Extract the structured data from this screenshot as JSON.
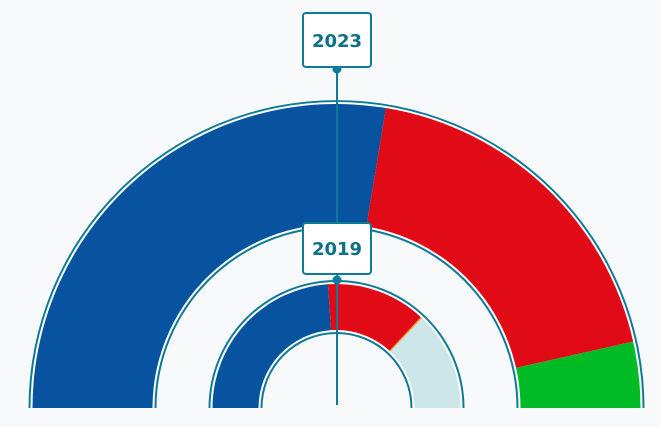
{
  "chart_data": {
    "type": "semicircle-donut",
    "colors": {
      "accent": "#0e7a99",
      "outline": "#0e7a99",
      "label_box_fill": "#ffffff",
      "label_text": "#0e6f89"
    },
    "charts": [
      {
        "year": "2023",
        "segments": [
          {
            "key": "blue",
            "share": 0.552,
            "color": "#0753a0"
          },
          {
            "key": "red",
            "share": 0.378,
            "color": "#e10a17"
          },
          {
            "key": "green",
            "share": 0.07,
            "color": "#00bb25"
          }
        ]
      },
      {
        "year": "2019",
        "segments": [
          {
            "key": "blue",
            "share": 0.478,
            "color": "#0753a0"
          },
          {
            "key": "red",
            "share": 0.26,
            "color": "#e10a17"
          },
          {
            "key": "orange",
            "share": 0.004,
            "color": "#f39a1c"
          },
          {
            "key": "lightblue",
            "share": 0.258,
            "color": "#cde6ea"
          }
        ]
      }
    ]
  }
}
